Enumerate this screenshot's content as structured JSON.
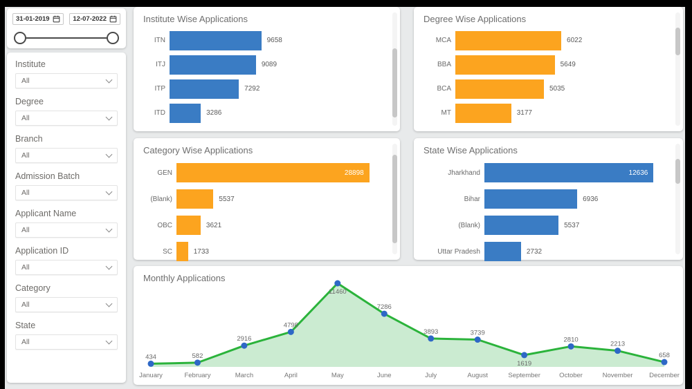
{
  "colors": {
    "bar_blue": "#3A7CC4",
    "bar_orange": "#FCA41F",
    "line_green": "#2BB33B",
    "area_green": "#CBEBD1",
    "marker_blue": "#2E68C6",
    "slider_dark": "#4a4a4a"
  },
  "sidebar": {
    "date_from": "31-01-2019",
    "date_to": "12-07-2022",
    "filters": [
      {
        "label": "Institute",
        "value": "All"
      },
      {
        "label": "Degree",
        "value": "All"
      },
      {
        "label": "Branch",
        "value": "All"
      },
      {
        "label": "Admission Batch",
        "value": "All"
      },
      {
        "label": "Applicant Name",
        "value": "All"
      },
      {
        "label": "Application ID",
        "value": "All"
      },
      {
        "label": "Category",
        "value": "All"
      },
      {
        "label": "State",
        "value": "All"
      }
    ]
  },
  "chart_data": [
    {
      "id": "institute",
      "type": "bar",
      "orientation": "horizontal",
      "title": "Institute Wise Applications",
      "categories": [
        "ITN",
        "ITJ",
        "ITP",
        "ITD"
      ],
      "values": [
        9658,
        9089,
        7292,
        3286
      ],
      "bar_color": "#3A7CC4",
      "xlim": [
        0,
        22500
      ],
      "value_labels": "outside",
      "grid": false,
      "legend": "none"
    },
    {
      "id": "degree",
      "type": "bar",
      "orientation": "horizontal",
      "title": "Degree Wise Applications",
      "categories": [
        "MCA",
        "BBA",
        "BCA",
        "MT"
      ],
      "values": [
        6022,
        5649,
        5035,
        3177
      ],
      "bar_color": "#FCA41F",
      "xlim": [
        0,
        12000
      ],
      "value_labels": "outside",
      "grid": false,
      "legend": "none"
    },
    {
      "id": "category",
      "type": "bar",
      "orientation": "horizontal",
      "title": "Category Wise Applications",
      "categories": [
        "GEN",
        "(Blank)",
        "OBC",
        "SC"
      ],
      "values": [
        28898,
        5537,
        3621,
        1733
      ],
      "bar_color": "#FCA41F",
      "xlim": [
        0,
        31000
      ],
      "value_labels": "outside-or-inside-when-long",
      "grid": false,
      "legend": "none"
    },
    {
      "id": "state",
      "type": "bar",
      "orientation": "horizontal",
      "title": "State Wise Applications",
      "categories": [
        "Jharkhand",
        "Bihar",
        "(Blank)",
        "Uttar Pradesh"
      ],
      "values": [
        12636,
        6936,
        5537,
        2732
      ],
      "bar_color": "#3A7CC4",
      "xlim": [
        0,
        13600
      ],
      "value_labels": "outside-or-inside-when-long",
      "grid": false,
      "legend": "none"
    },
    {
      "id": "monthly",
      "type": "area",
      "title": "Monthly Applications",
      "x": [
        "January",
        "February",
        "March",
        "April",
        "May",
        "June",
        "July",
        "August",
        "September",
        "October",
        "November",
        "December"
      ],
      "values": [
        434,
        582,
        2916,
        4798,
        11460,
        7286,
        3893,
        3739,
        1619,
        2810,
        2213,
        658
      ],
      "line_color": "#2BB33B",
      "fill_color": "#CBEBD1",
      "marker_color": "#2E68C6",
      "ylim": [
        0,
        11460
      ],
      "labels_below_indices": [
        4,
        8
      ],
      "grid": false,
      "legend": "none"
    }
  ]
}
